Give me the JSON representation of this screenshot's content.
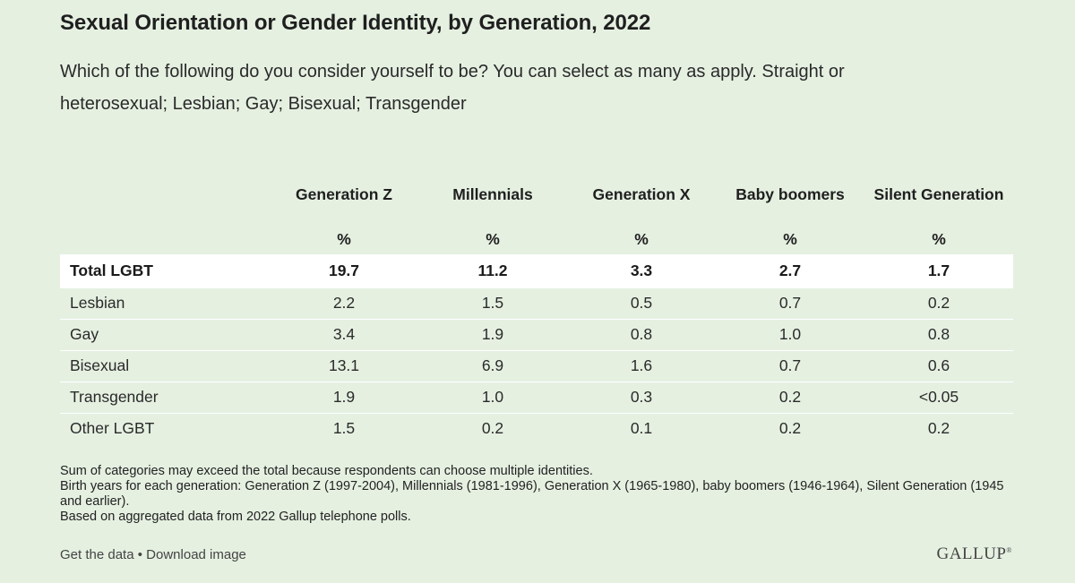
{
  "chart_data": {
    "type": "table",
    "title": "Sexual Orientation or Gender Identity, by Generation, 2022",
    "subtitle": "Which of the following do you consider yourself to be? You can select as many as apply. Straight or heterosexual; Lesbian; Gay; Bisexual; Transgender",
    "columns": [
      "Generation Z",
      "Millennials",
      "Generation X",
      "Baby boomers",
      "Silent Generation"
    ],
    "unit_label": "%",
    "rows": [
      {
        "label": "Total LGBT",
        "values": [
          "19.7",
          "11.2",
          "3.3",
          "2.7",
          "1.7"
        ]
      },
      {
        "label": "Lesbian",
        "values": [
          "2.2",
          "1.5",
          "0.5",
          "0.7",
          "0.2"
        ]
      },
      {
        "label": "Gay",
        "values": [
          "3.4",
          "1.9",
          "0.8",
          "1.0",
          "0.8"
        ]
      },
      {
        "label": "Bisexual",
        "values": [
          "13.1",
          "6.9",
          "1.6",
          "0.7",
          "0.6"
        ]
      },
      {
        "label": "Transgender",
        "values": [
          "1.9",
          "1.0",
          "0.3",
          "0.2",
          "<0.05"
        ]
      },
      {
        "label": "Other LGBT",
        "values": [
          "1.5",
          "0.2",
          "0.1",
          "0.2",
          "0.2"
        ]
      }
    ],
    "highlighted_row": "Total LGBT",
    "notes": [
      "Sum of categories may exceed the total because respondents can choose multiple identities.",
      "Birth years for each generation: Generation Z (1997-2004), Millennials (1981-1996), Generation X (1965-1980), baby boomers (1946-1964), Silent Generation (1945 and earlier).",
      "Based on aggregated data from 2022 Gallup telephone polls."
    ]
  },
  "footer": {
    "get_data": "Get the data",
    "separator": "•",
    "download": "Download image",
    "logo": "GALLUP",
    "logo_mark": "®"
  },
  "colors": {
    "background": "#e5f0e1",
    "highlight_row": "#ffffff",
    "row_divider": "#ffffff"
  }
}
